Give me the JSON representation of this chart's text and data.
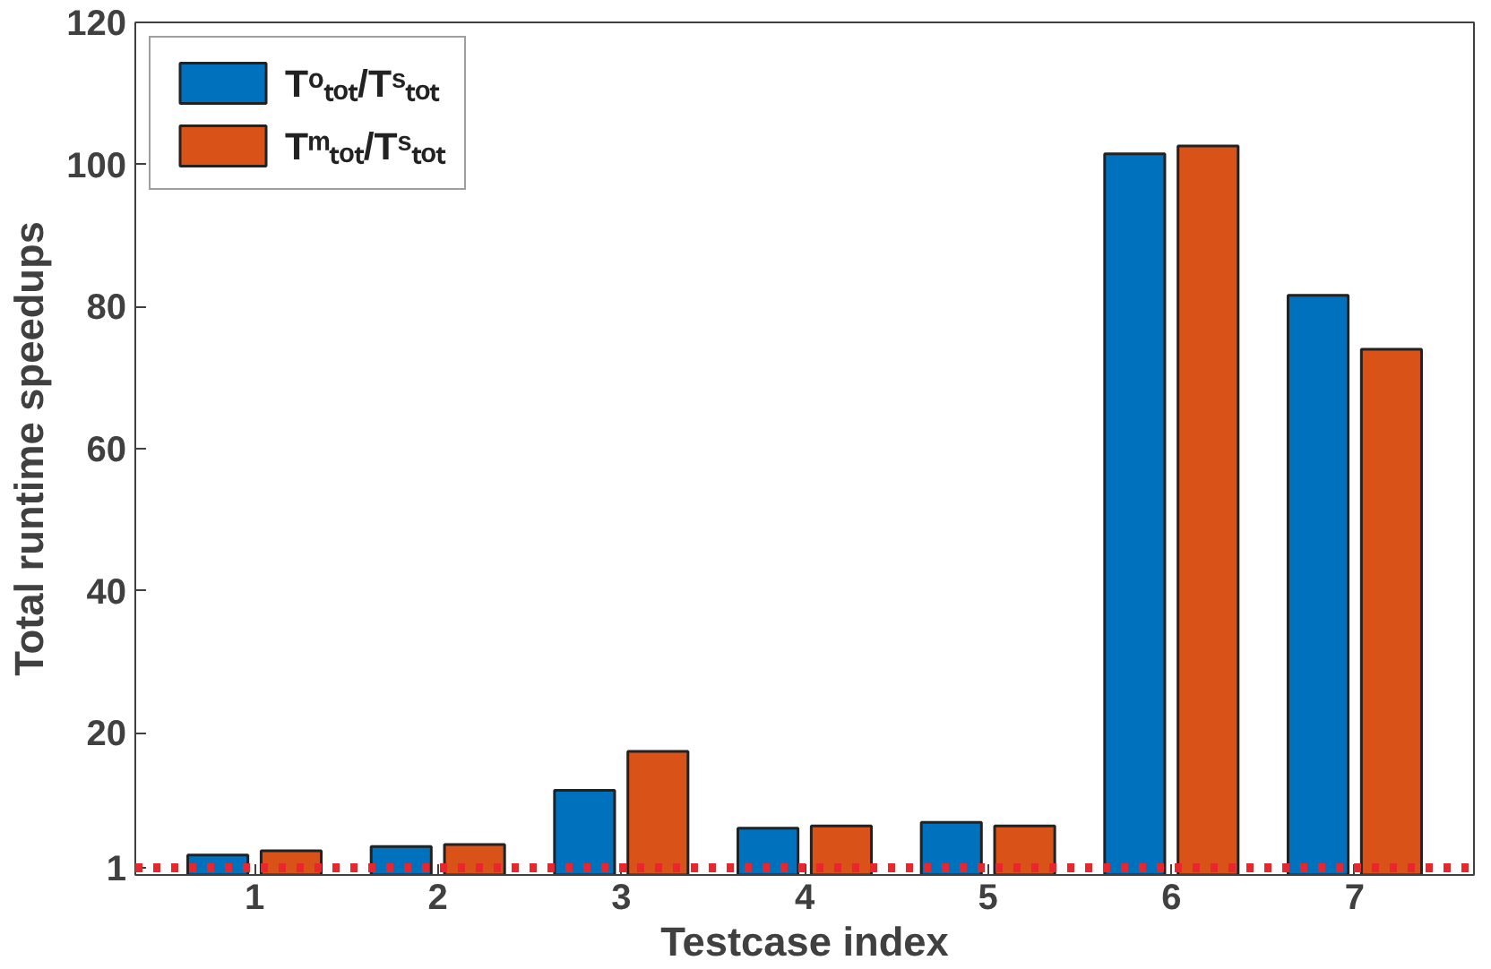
{
  "chart_data": {
    "type": "bar",
    "xlabel": "Testcase index",
    "ylabel": "Total runtime speedups",
    "categories": [
      "1",
      "2",
      "3",
      "4",
      "5",
      "6",
      "7"
    ],
    "series": [
      {
        "name": "Tᵒₜₒₜ/Tˢₜₒₜ",
        "color": "#0072bd",
        "values": [
          2.8,
          4.0,
          11.9,
          6.6,
          7.4,
          101.5,
          81.6
        ]
      },
      {
        "name": "Tᵐₜₒₜ/Tˢₜₒₜ",
        "color": "#d95319",
        "values": [
          3.4,
          4.3,
          17.4,
          6.9,
          6.9,
          102.6,
          74.0
        ]
      }
    ],
    "ylim": [
      0,
      120
    ],
    "yticks": [
      1,
      20,
      40,
      60,
      80,
      100,
      120
    ],
    "ref_lines": [
      {
        "axis": "y",
        "value": 1,
        "color": "#e8262b",
        "line_style": "dotted"
      }
    ],
    "grid": false,
    "legend": "top left"
  }
}
